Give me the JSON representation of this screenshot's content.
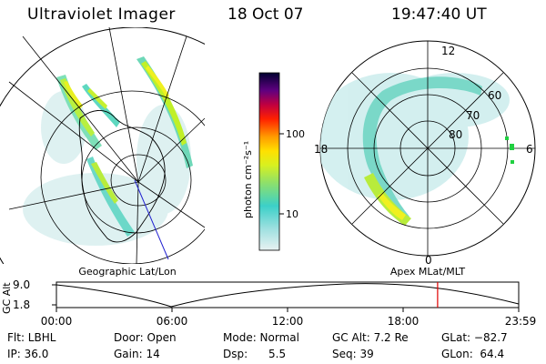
{
  "header": {
    "title": "Ultraviolet Imager",
    "date": "18 Oct 07",
    "time": "19:47:40 UT"
  },
  "colorbar": {
    "label": "photon cm⁻²s⁻¹",
    "ticks": [
      "100",
      "10"
    ]
  },
  "geo_panel": {
    "label": "Geographic Lat/Lon"
  },
  "apex_panel": {
    "label": "Apex  MLat/MLT",
    "lat_labels": [
      "60",
      "70",
      "80"
    ],
    "mlt_labels": [
      "12",
      "18",
      "6",
      "0"
    ]
  },
  "altitude_plot": {
    "axis_label": "GC Alt",
    "y_ticks": [
      "9.0",
      "1.8"
    ],
    "x_ticks": [
      "00:00",
      "06:00",
      "12:00",
      "18:00",
      "23:59"
    ],
    "marker_time_hours": 19.79,
    "marker_color": "#e00000"
  },
  "status": {
    "filter": "Flt: LBHL",
    "ip": "IP: 36.0",
    "door": "Door: Open",
    "gain": "Gain: 14",
    "mode": "Mode: Normal",
    "dsp": "Dsp:      5.5",
    "gc_alt": "GC Alt: 7.2 Re",
    "seq": "Seq: 39",
    "glat": "GLat: −82.7",
    "glon": "GLon:  64.4"
  }
}
